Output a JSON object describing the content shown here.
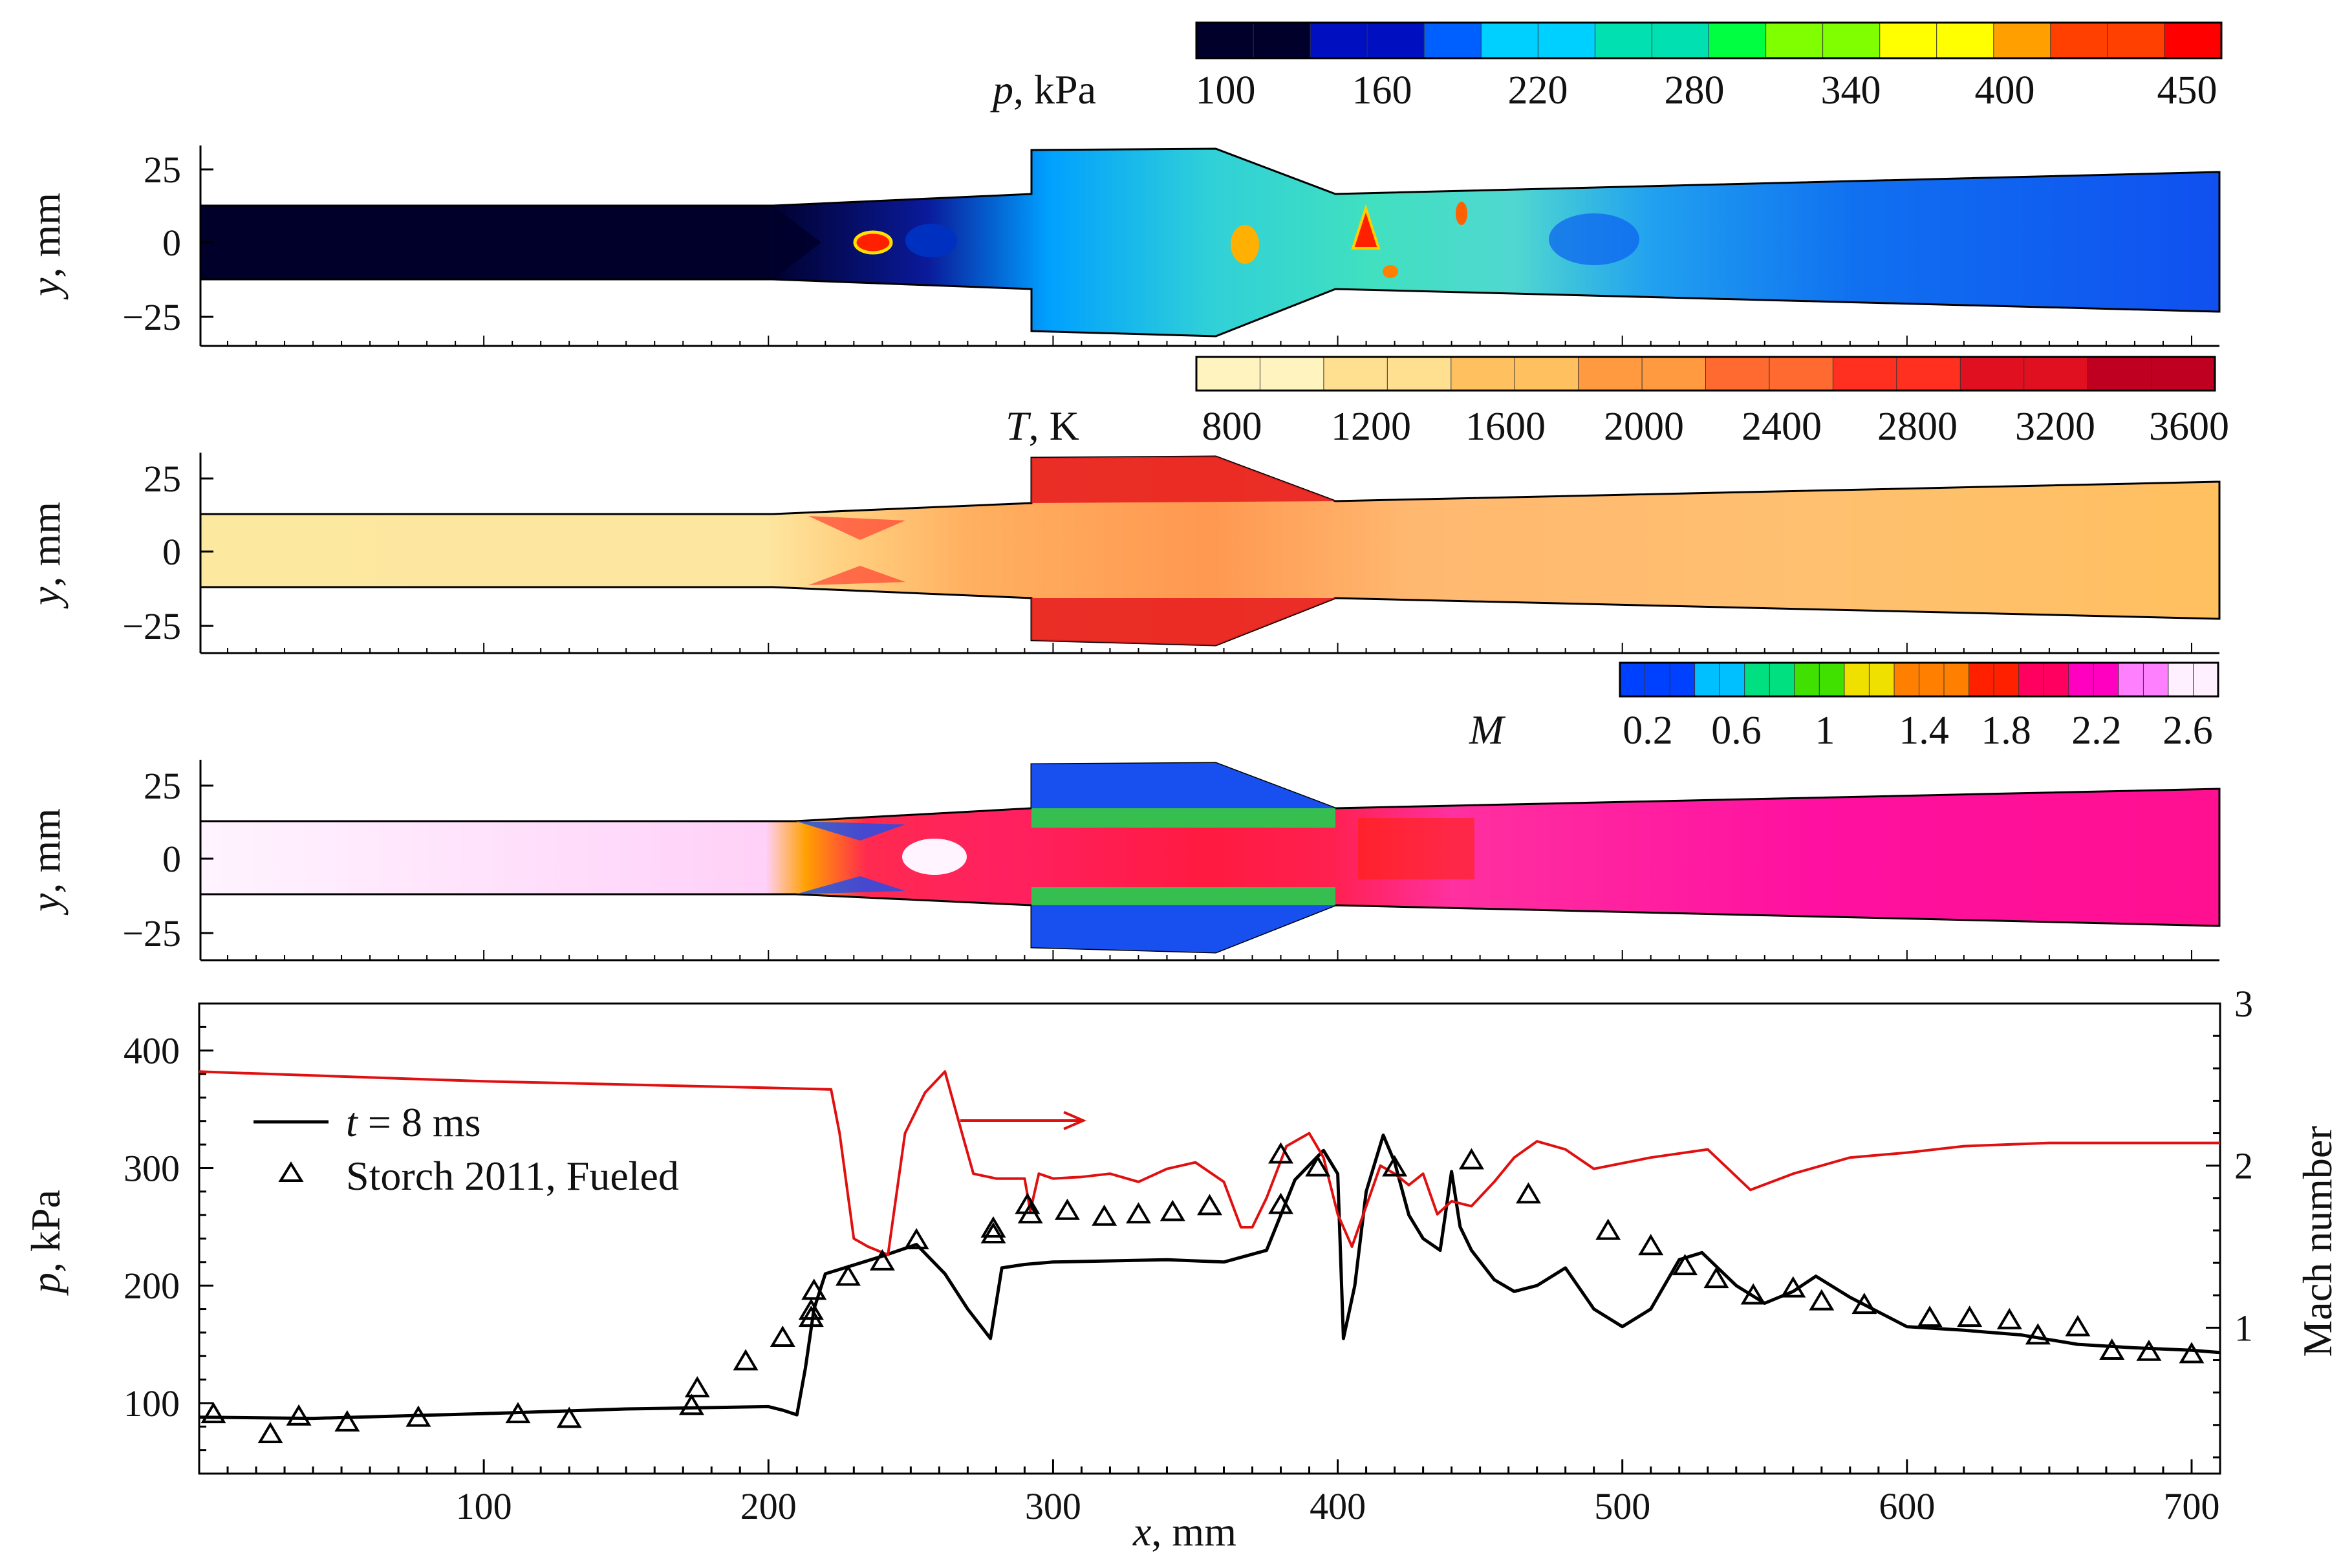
{
  "figure": {
    "panels": [
      {
        "variable": "p",
        "colorbar_label_italic": "p",
        "colorbar_label_rest": ", kPa",
        "colorbar_ticks": [
          "100",
          "160",
          "220",
          "280",
          "340",
          "400",
          "450"
        ],
        "colors": [
          "#00002a",
          "#0010c0",
          "#0060ff",
          "#00d0ff",
          "#00e0b0",
          "#00ff40",
          "#80ff00",
          "#ffff00",
          "#ffa000",
          "#ff4000",
          "#ff0000"
        ],
        "ylabel_italic": "y",
        "ylabel_rest": ", mm",
        "yticks": [
          "25",
          "0",
          "−25"
        ]
      },
      {
        "variable": "T",
        "colorbar_label_italic": "T",
        "colorbar_label_rest": ", K",
        "colorbar_ticks": [
          "800",
          "1200",
          "1600",
          "2000",
          "2400",
          "2800",
          "3200",
          "3600"
        ],
        "colors": [
          "#fff4c0",
          "#ffe090",
          "#ffc060",
          "#ff9a40",
          "#ff6a30",
          "#ff3020",
          "#e01020",
          "#c00020"
        ],
        "ylabel_italic": "y",
        "ylabel_rest": ", mm",
        "yticks": [
          "25",
          "0",
          "−25"
        ]
      },
      {
        "variable": "M",
        "colorbar_label_italic": "M",
        "colorbar_label_rest": "",
        "colorbar_ticks": [
          "0.2",
          "0.6",
          "1",
          "1.4",
          "1.8",
          "2.2",
          "2.6"
        ],
        "colors": [
          "#0040ff",
          "#00c0ff",
          "#00e080",
          "#40e000",
          "#f0e000",
          "#ff8000",
          "#ff2000",
          "#ff0060",
          "#ff00c0",
          "#ff80ff",
          "#fff0ff"
        ],
        "ylabel_italic": "y",
        "ylabel_rest": ", mm",
        "yticks": [
          "25",
          "0",
          "−25"
        ]
      }
    ],
    "plot": {
      "ylabel_italic": "p",
      "ylabel_rest": ", kPa",
      "y2label": "Mach number",
      "xlabel_italic": "x",
      "xlabel_rest": ", mm",
      "xticks": [
        "100",
        "200",
        "300",
        "400",
        "500",
        "600",
        "700"
      ],
      "yticks": [
        "100",
        "200",
        "300",
        "400"
      ],
      "y2ticks": [
        "1",
        "2",
        "3"
      ],
      "legend": {
        "line_label_italic": "t",
        "line_label_rest": " = 8 ms",
        "marker_label": "Storch 2011, Fueled"
      }
    },
    "colors": {
      "pressure_line": "#000000",
      "mach_line": "#e01010",
      "marker": "#000000",
      "arrow": "#e01010"
    }
  },
  "chart_data": {
    "type": "line",
    "title": "",
    "xlabel": "x, mm",
    "ylabel": "p, kPa",
    "y2label": "Mach number",
    "xlim": [
      0,
      710
    ],
    "ylim": [
      40,
      440
    ],
    "y2lim": [
      0.1,
      3.0
    ],
    "series": [
      {
        "name": "t = 8 ms",
        "axis": "left",
        "x": [
          0,
          40,
          100,
          150,
          200,
          205,
          210,
          213,
          216,
          220,
          240,
          252,
          262,
          270,
          278,
          282,
          290,
          300,
          340,
          360,
          375,
          385,
          395,
          400,
          402,
          406,
          410,
          416,
          420,
          425,
          430,
          436,
          440,
          443,
          447,
          455,
          462,
          470,
          480,
          490,
          500,
          510,
          520,
          528,
          540,
          550,
          560,
          568,
          580,
          600,
          620,
          640,
          660,
          680,
          700,
          710
        ],
        "y": [
          88,
          87,
          91,
          95,
          97,
          94,
          90,
          130,
          180,
          210,
          225,
          235,
          210,
          180,
          155,
          215,
          218,
          220,
          222,
          220,
          230,
          290,
          315,
          295,
          155,
          200,
          280,
          328,
          305,
          260,
          240,
          230,
          297,
          250,
          230,
          205,
          195,
          200,
          215,
          180,
          165,
          180,
          222,
          228,
          200,
          185,
          195,
          208,
          190,
          165,
          162,
          158,
          150,
          147,
          145,
          143
        ]
      },
      {
        "name": "Mach number",
        "axis": "right",
        "x": [
          0,
          100,
          200,
          222,
          225,
          230,
          235,
          242,
          248,
          255,
          262,
          268,
          272,
          280,
          290,
          292,
          295,
          300,
          310,
          320,
          330,
          340,
          350,
          360,
          366,
          370,
          375,
          382,
          390,
          395,
          400,
          405,
          410,
          415,
          420,
          425,
          430,
          435,
          440,
          447,
          455,
          462,
          470,
          480,
          490,
          510,
          530,
          545,
          560,
          580,
          600,
          620,
          650,
          680,
          710
        ],
        "y": [
          2.58,
          2.52,
          2.48,
          2.47,
          2.2,
          1.55,
          1.5,
          1.45,
          2.2,
          2.45,
          2.58,
          2.2,
          1.95,
          1.92,
          1.92,
          1.72,
          1.95,
          1.92,
          1.93,
          1.95,
          1.9,
          1.98,
          2.02,
          1.9,
          1.62,
          1.62,
          1.8,
          2.12,
          2.2,
          2.05,
          1.7,
          1.5,
          1.75,
          2.0,
          1.95,
          1.88,
          1.95,
          1.7,
          1.78,
          1.75,
          1.9,
          2.05,
          2.15,
          2.1,
          1.98,
          2.05,
          2.1,
          1.85,
          1.95,
          2.05,
          2.08,
          2.12,
          2.14,
          2.14,
          2.14
        ]
      },
      {
        "name": "Storch 2011, Fueled",
        "axis": "left",
        "marker": "triangle",
        "x": [
          5,
          25,
          35,
          52,
          77,
          112,
          130,
          173,
          175,
          192,
          205,
          215,
          215,
          216,
          228,
          240,
          252,
          279,
          279,
          291,
          292,
          305,
          318,
          330,
          342,
          355,
          380,
          380,
          393,
          420,
          447,
          467,
          495,
          510,
          522,
          533,
          546,
          560,
          570,
          585,
          608,
          622,
          636,
          646,
          660,
          672,
          685,
          700
        ],
        "y": [
          90,
          73,
          88,
          83,
          87,
          90,
          86,
          97,
          112,
          135,
          155,
          172,
          178,
          195,
          207,
          220,
          238,
          243,
          248,
          268,
          260,
          263,
          258,
          260,
          262,
          267,
          268,
          311,
          300,
          300,
          306,
          277,
          246,
          233,
          216,
          205,
          191,
          197,
          186,
          183,
          172,
          172,
          170,
          157,
          164,
          144,
          143,
          141
        ]
      }
    ]
  }
}
